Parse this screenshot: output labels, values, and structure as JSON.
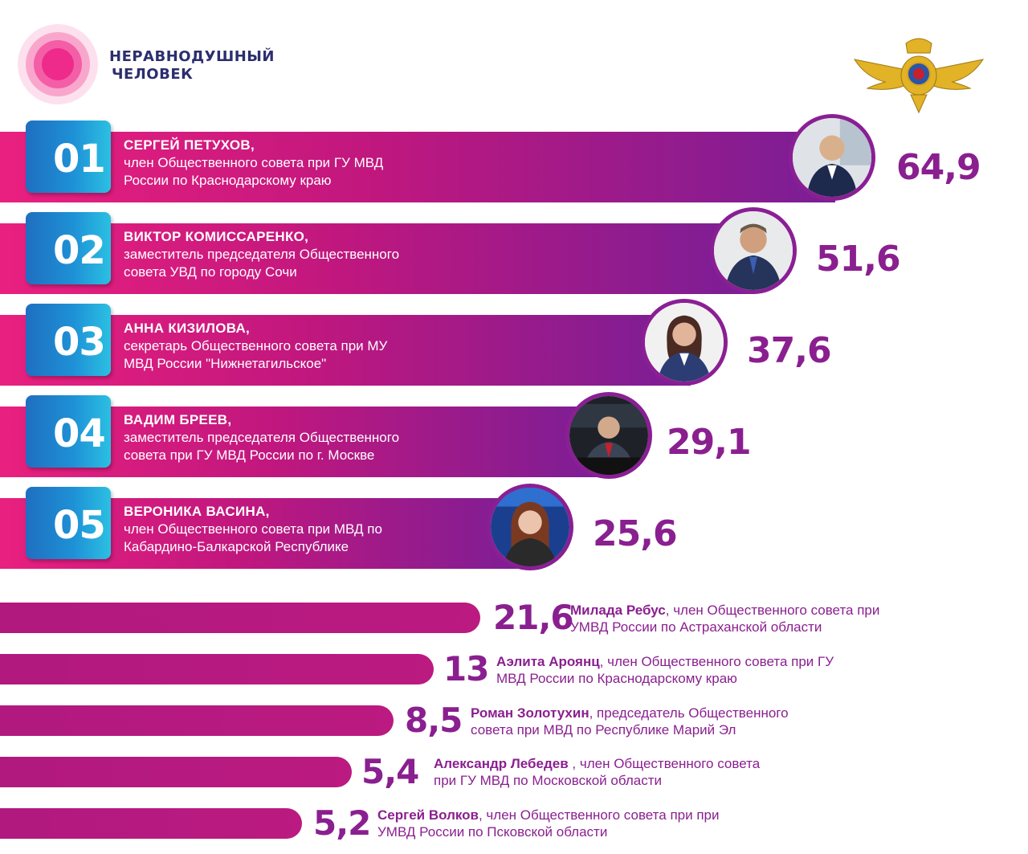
{
  "brand": {
    "line1": "НЕРАВНОДУШНЫЙ",
    "line2": "ЧЕЛОВЕК",
    "emblem_icon": "mvd-eagle-emblem"
  },
  "colors": {
    "bar_start": "#e9207f",
    "bar_end": "#7a1e96",
    "badge": "#1e90d6",
    "value_text": "#8a1f8f"
  },
  "chart_data": {
    "type": "bar",
    "orientation": "horizontal",
    "categories": [
      "Сергей Петухов",
      "Виктор Комиссаренко",
      "Анна Кизилова",
      "Вадим Бреев",
      "Вероника Васина",
      "Милада Ребус",
      "Аэлита Ароянц",
      "Роман Золотухин",
      "Александр Лебедев",
      "Сергей Волков"
    ],
    "values": [
      64.9,
      51.6,
      37.6,
      29.1,
      25.6,
      21.6,
      13,
      8.5,
      5.4,
      5.2
    ],
    "top": [
      {
        "rank": "01",
        "name": "СЕРГЕЙ ПЕТУХОВ,",
        "role1": "член Общественного совета при ГУ МВД",
        "role2": "России по Краснодарскому краю",
        "value": "64,9"
      },
      {
        "rank": "02",
        "name": "ВИКТОР КОМИССАРЕНКО,",
        "role1": "заместитель председателя Общественного",
        "role2": "совета УВД по городу Сочи",
        "value": "51,6"
      },
      {
        "rank": "03",
        "name": "АННА КИЗИЛОВА,",
        "role1": "секретарь Общественного совета при МУ",
        "role2": "МВД России \"Нижнетагильское\"",
        "value": "37,6"
      },
      {
        "rank": "04",
        "name": "ВАДИМ БРЕЕВ,",
        "role1": "заместитель председателя Общественного",
        "role2": "совета при ГУ МВД России по г. Москве",
        "value": "29,1"
      },
      {
        "rank": "05",
        "name": "ВЕРОНИКА ВАСИНА,",
        "role1": "член Общественного совета при МВД по",
        "role2": "Кабардино-Балкарской Республике",
        "value": "25,6"
      }
    ],
    "rest": [
      {
        "value": "21,6",
        "name": "Милада Ребус",
        "role1": ", член Общественного совета при",
        "role2": "УМВД России по Астраханской области"
      },
      {
        "value": "13",
        "name": "Аэлита Ароянц",
        "role1": ", член Общественного совета при ГУ",
        "role2": "МВД России по Краснодарскому краю"
      },
      {
        "value": "8,5",
        "name": "Роман Золотухин",
        "role1": ", председатель Общественного",
        "role2": "совета при МВД по Республике Марий Эл"
      },
      {
        "value": "5,4",
        "name": "Александр Лебедев",
        "role1": " , член Общественного совета",
        "role2": "при ГУ МВД по Московской области"
      },
      {
        "value": "5,2",
        "name": "Сергей Волков",
        "role1": ", член Общественного совета при при",
        "role2": "УМВД России по Псковской области"
      }
    ]
  }
}
